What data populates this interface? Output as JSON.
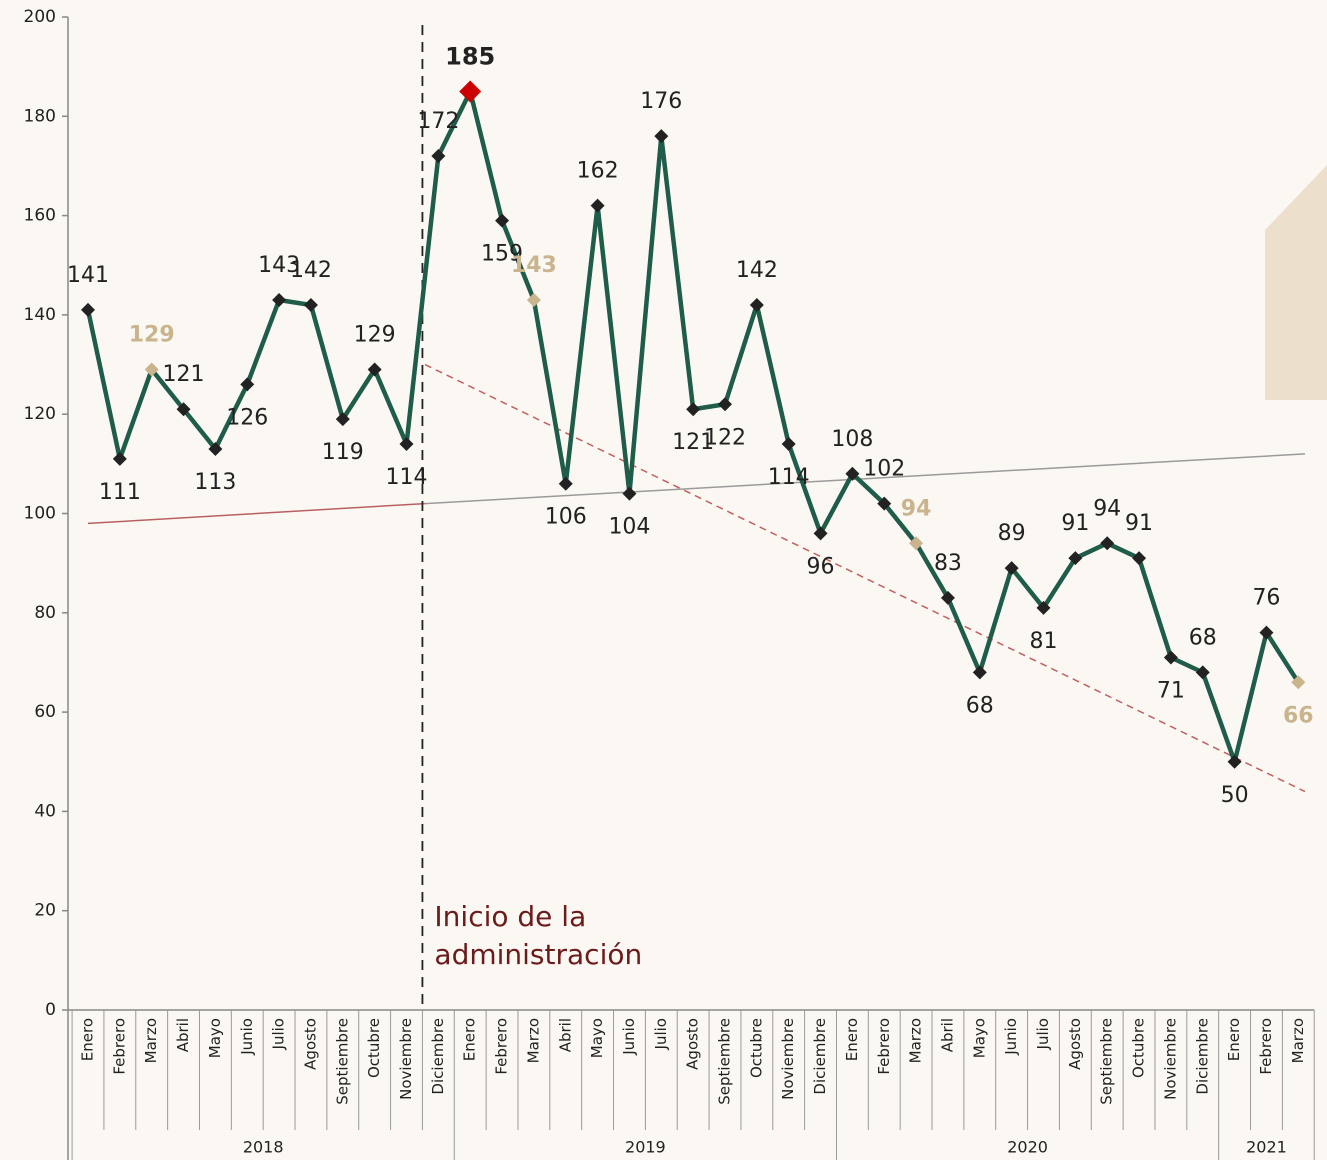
{
  "chart_data": {
    "type": "line",
    "categories": [
      "Enero",
      "Febrero",
      "Marzo",
      "Abril",
      "Mayo",
      "Junio",
      "Julio",
      "Agosto",
      "Septiembre",
      "Octubre",
      "Noviembre",
      "Diciembre",
      "Enero",
      "Febrero",
      "Marzo",
      "Abril",
      "Mayo",
      "Junio",
      "Julio",
      "Agosto",
      "Septiembre",
      "Octubre",
      "Noviembre",
      "Diciembre",
      "Enero",
      "Febrero",
      "Marzo",
      "Abril",
      "Mayo",
      "Junio",
      "Julio",
      "Agosto",
      "Septiembre",
      "Octubre",
      "Noviembre",
      "Diciembre",
      "Enero",
      "Febrero",
      "Marzo"
    ],
    "years": [
      "2018",
      "2019",
      "2020",
      "2021"
    ],
    "series": [
      {
        "color": "#1f5c4a",
        "values": [
          141,
          111,
          129,
          121,
          113,
          126,
          143,
          142,
          119,
          129,
          114,
          172,
          185,
          159,
          143,
          106,
          162,
          104,
          176,
          121,
          122,
          142,
          114,
          96,
          108,
          102,
          94,
          83,
          68,
          89,
          81,
          91,
          94,
          91,
          71,
          68,
          50,
          76,
          66
        ],
        "marker_colors": [
          "#222",
          "#222",
          "#c9b48e",
          "#222",
          "#222",
          "#222",
          "#222",
          "#222",
          "#222",
          "#222",
          "#222",
          "#222",
          "#cc0000",
          "#222",
          "#c9b48e",
          "#222",
          "#222",
          "#222",
          "#222",
          "#222",
          "#222",
          "#222",
          "#222",
          "#222",
          "#222",
          "#222",
          "#c9b48e",
          "#222",
          "#222",
          "#222",
          "#222",
          "#222",
          "#222",
          "#222",
          "#222",
          "#222",
          "#222",
          "#222",
          "#c9b48e"
        ]
      }
    ],
    "ylim": [
      0,
      200
    ],
    "yticks": [
      0,
      20,
      40,
      60,
      80,
      100,
      120,
      140,
      160,
      180,
      200
    ],
    "reference_lines": [
      {
        "from": 98,
        "to": 102,
        "color": "#b86060",
        "dashed": false
      },
      {
        "from": 102,
        "to": 112,
        "color": "#9a9a9a",
        "dashed": false
      },
      {
        "from": 130,
        "to": 44,
        "color": "#c06060",
        "dashed": true
      }
    ],
    "annotation": [
      "Inicio de la",
      "administración"
    ]
  }
}
